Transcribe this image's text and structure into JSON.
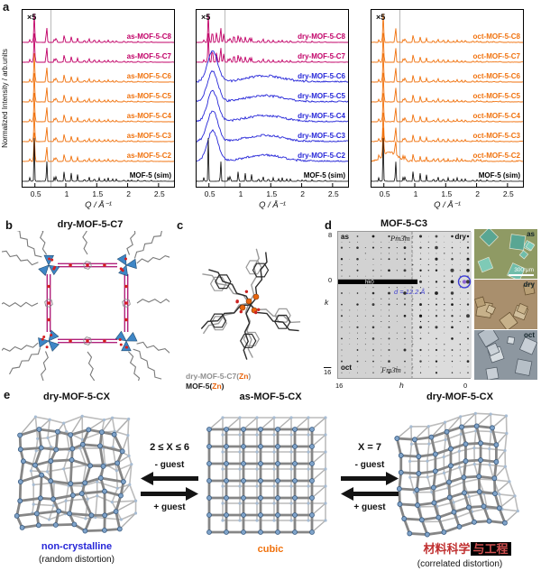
{
  "panel_labels": {
    "a": "a",
    "b": "b",
    "c": "c",
    "d": "d",
    "e": "e"
  },
  "chart_data": [
    {
      "type": "line",
      "panel": "a-left",
      "title": "",
      "xlabel": "Q / Å⁻¹",
      "ylabel": "Normalized Intensity / arb.units",
      "xlim": [
        0.3,
        2.75
      ],
      "xticks": {
        "labels": [
          "0.5",
          "1",
          "1.5",
          "2",
          "2.5"
        ],
        "Q": [
          0.5,
          1,
          1.5,
          2,
          2.5
        ]
      },
      "annotation": "×5",
      "magnify_divider_Q": 0.76,
      "stack_order": "top-to-bottom",
      "sim_peaks_Q_relheight": [
        [
          0.42,
          10
        ],
        [
          0.49,
          100
        ],
        [
          0.69,
          55
        ],
        [
          0.815,
          12
        ],
        [
          0.845,
          16
        ],
        [
          0.975,
          28
        ],
        [
          1.09,
          20
        ],
        [
          1.19,
          15
        ],
        [
          1.3,
          8
        ],
        [
          1.375,
          13
        ],
        [
          1.46,
          10
        ],
        [
          1.54,
          8
        ],
        [
          1.625,
          6
        ],
        [
          1.685,
          8
        ],
        [
          1.755,
          6
        ],
        [
          1.82,
          6
        ],
        [
          1.94,
          5
        ],
        [
          2.01,
          4
        ],
        [
          2.06,
          4
        ],
        [
          2.17,
          4
        ],
        [
          2.275,
          3
        ],
        [
          2.38,
          3
        ]
      ],
      "series": [
        {
          "name": "as-MOF-5-C8",
          "color": "#c10067",
          "style": "sharp"
        },
        {
          "name": "as-MOF-5-C7",
          "color": "#c10067",
          "style": "sharp"
        },
        {
          "name": "as-MOF-5-C6",
          "color": "#f0720e",
          "style": "sharp"
        },
        {
          "name": "as-MOF-5-C5",
          "color": "#f0720e",
          "style": "sharp"
        },
        {
          "name": "as-MOF-5-C4",
          "color": "#f0720e",
          "style": "sharp"
        },
        {
          "name": "as-MOF-5-C3",
          "color": "#f0720e",
          "style": "sharp"
        },
        {
          "name": "as-MOF-5-C2",
          "color": "#f0720e",
          "style": "sharp"
        },
        {
          "name": "MOF-5 (sim)",
          "color": "#000000",
          "style": "sim"
        }
      ]
    },
    {
      "type": "line",
      "panel": "a-middle",
      "title": "",
      "xlabel": "Q / Å⁻¹",
      "ylabel": "Normalized Intensity / arb.units",
      "xlim": [
        0.3,
        2.75
      ],
      "xticks": {
        "labels": [
          "0.5",
          "1",
          "1.5",
          "2",
          "2.5"
        ],
        "Q": [
          0.5,
          1,
          1.5,
          2,
          2.5
        ]
      },
      "annotation": "×5",
      "magnify_divider_Q": 0.76,
      "stack_order": "top-to-bottom",
      "sim_peaks_Q_relheight": [
        [
          0.42,
          10
        ],
        [
          0.49,
          100
        ],
        [
          0.69,
          55
        ],
        [
          0.815,
          12
        ],
        [
          0.845,
          16
        ],
        [
          0.975,
          28
        ],
        [
          1.09,
          20
        ],
        [
          1.19,
          15
        ],
        [
          1.3,
          8
        ],
        [
          1.375,
          13
        ],
        [
          1.46,
          10
        ],
        [
          1.54,
          8
        ],
        [
          1.625,
          6
        ],
        [
          1.685,
          8
        ],
        [
          1.755,
          6
        ],
        [
          1.82,
          6
        ],
        [
          1.94,
          5
        ],
        [
          2.01,
          4
        ],
        [
          2.06,
          4
        ],
        [
          2.17,
          4
        ],
        [
          2.275,
          3
        ],
        [
          2.38,
          3
        ]
      ],
      "series": [
        {
          "name": "dry-MOF-5-C8",
          "color": "#c10067",
          "style": "sharp",
          "extra_peaks": [
            [
              0.555,
              14
            ],
            [
              0.625,
              12
            ],
            [
              0.74,
              10
            ],
            [
              0.905,
              9
            ],
            [
              1.02,
              7
            ],
            [
              1.155,
              6
            ]
          ]
        },
        {
          "name": "dry-MOF-5-C7",
          "color": "#c10067",
          "style": "sharp",
          "extra_peaks": [
            [
              0.555,
              16
            ],
            [
              0.625,
              12
            ],
            [
              0.74,
              10
            ],
            [
              0.905,
              9
            ],
            [
              1.02,
              7
            ],
            [
              1.155,
              6
            ]
          ]
        },
        {
          "name": "dry-MOF-5-C6",
          "color": "#2626d8",
          "style": "broad"
        },
        {
          "name": "dry-MOF-5-C5",
          "color": "#2626d8",
          "style": "broad"
        },
        {
          "name": "dry-MOF-5-C4",
          "color": "#2626d8",
          "style": "broad"
        },
        {
          "name": "dry-MOF-5-C3",
          "color": "#2626d8",
          "style": "broad"
        },
        {
          "name": "dry-MOF-5-C2",
          "color": "#2626d8",
          "style": "broad"
        },
        {
          "name": "MOF-5 (sim)",
          "color": "#000000",
          "style": "sim"
        }
      ]
    },
    {
      "type": "line",
      "panel": "a-right",
      "title": "",
      "xlabel": "Q / Å⁻¹",
      "ylabel": "Normalized Intensity / arb.units",
      "xlim": [
        0.3,
        2.75
      ],
      "xticks": {
        "labels": [
          "0.5",
          "1",
          "1.5",
          "2",
          "2.5"
        ],
        "Q": [
          0.5,
          1,
          1.5,
          2,
          2.5
        ]
      },
      "annotation": "×5",
      "magnify_divider_Q": 0.76,
      "stack_order": "top-to-bottom",
      "sim_peaks_Q_relheight": [
        [
          0.42,
          10
        ],
        [
          0.49,
          100
        ],
        [
          0.69,
          55
        ],
        [
          0.815,
          12
        ],
        [
          0.845,
          16
        ],
        [
          0.975,
          28
        ],
        [
          1.09,
          20
        ],
        [
          1.19,
          15
        ],
        [
          1.3,
          8
        ],
        [
          1.375,
          13
        ],
        [
          1.46,
          10
        ],
        [
          1.54,
          8
        ],
        [
          1.625,
          6
        ],
        [
          1.685,
          8
        ],
        [
          1.755,
          6
        ],
        [
          1.82,
          6
        ],
        [
          1.94,
          5
        ],
        [
          2.01,
          4
        ],
        [
          2.06,
          4
        ],
        [
          2.17,
          4
        ],
        [
          2.275,
          3
        ],
        [
          2.38,
          3
        ]
      ],
      "series": [
        {
          "name": "oct-MOF-5-C8",
          "color": "#f0720e",
          "style": "sharp",
          "noise": 0.8
        },
        {
          "name": "oct-MOF-5-C7",
          "color": "#f0720e",
          "style": "sharp",
          "noise": 0.8
        },
        {
          "name": "oct-MOF-5-C6",
          "color": "#f0720e",
          "style": "sharp",
          "noise": 0.8
        },
        {
          "name": "oct-MOF-5-C5",
          "color": "#f0720e",
          "style": "sharp",
          "noise": 0.8
        },
        {
          "name": "oct-MOF-5-C4",
          "color": "#f0720e",
          "style": "sharp",
          "noise": 0.9
        },
        {
          "name": "oct-MOF-5-C3",
          "color": "#f0720e",
          "style": "sharp",
          "noise": 1.0
        },
        {
          "name": "oct-MOF-5-C2",
          "color": "#f0720e",
          "style": "sharp",
          "noise": 2.4,
          "broad_extra": 10
        },
        {
          "name": "MOF-5 (sim)",
          "color": "#000000",
          "style": "sim"
        }
      ]
    }
  ],
  "panel_b": {
    "title": "dry-MOF-5-C7"
  },
  "panel_c": {
    "legend": [
      {
        "pre": "dry-MOF-5-C7(",
        "zn": "Zn",
        "post": ")",
        "pre_color": "#8f8f8f",
        "zn_color": "#e8650f"
      },
      {
        "pre": "MOF-5(",
        "zn": "Zn",
        "post": ")",
        "pre_color": "#1a1a1a",
        "zn_color": "#e8650f"
      }
    ]
  },
  "panel_d": {
    "title": "MOF-5-C3",
    "diffraction": {
      "label_as": "as",
      "label_dry": "dry",
      "label_oct": "oct",
      "space_group_top": "Pm3̄m",
      "space_group_bottom": "Fm3̄m",
      "zone_label": "hk0",
      "d_annotation": "d = 12.2 Å",
      "d_color": "#4040d0",
      "k_axis": {
        "top": "8",
        "zero": "0",
        "bottom": "16",
        "label": "k"
      },
      "h_axis": {
        "left": "16",
        "right": "0",
        "label": "h"
      }
    },
    "photos": {
      "labels": [
        "as",
        "dry",
        "oct"
      ],
      "scale_bar": "300 μm"
    }
  },
  "panel_e": {
    "left": {
      "title": "dry-MOF-5-CX",
      "caption": "non-crystalline",
      "subcaption": "(random distortion)",
      "caption_color": "#2626d8"
    },
    "middle": {
      "title": "as-MOF-5-CX",
      "caption": "cubic",
      "caption_color": "#f0720e"
    },
    "right": {
      "title": "dry-MOF-5-CX",
      "subcaption": "(correlated distortion)"
    },
    "watermark": {
      "text_plain": "材料科学",
      "text_boxed": "与工程"
    },
    "transition_left": {
      "condition": "2 ≤ X ≤ 6",
      "minus": "- guest",
      "plus": "+ guest"
    },
    "transition_right": {
      "condition": "X = 7",
      "minus": "- guest",
      "plus": "+ guest"
    }
  }
}
